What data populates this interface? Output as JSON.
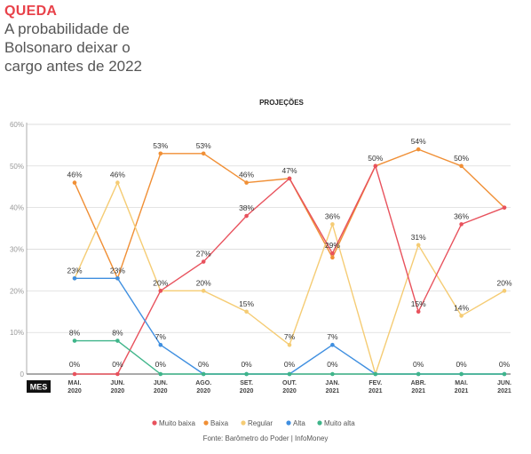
{
  "header": {
    "kicker": "QUEDA",
    "headline_lines": [
      "A probabilidade de",
      "Bolsonaro deixar o",
      "cargo antes de 2022"
    ]
  },
  "source": "Fonte: Barômetro do Poder | InfoMoney",
  "colors": {
    "Muito baixa": "#e8525d",
    "Baixa": "#f08f35",
    "Regular": "#f5cc74",
    "Alta": "#3f8fe0",
    "Muito alta": "#3fb58a",
    "axis_label_bg": "#111111"
  },
  "chart_data": {
    "type": "line",
    "title": "PROJEÇÕES",
    "xlabel": "MES",
    "ylabel": "",
    "ylim": [
      0,
      60
    ],
    "yticks": [
      "0",
      "10%",
      "20%",
      "30%",
      "40%",
      "50%",
      "60%"
    ],
    "grid": true,
    "legend_position": "bottom",
    "categories": [
      [
        "MAI.",
        "2020"
      ],
      [
        "JUN.",
        "2020"
      ],
      [
        "JUN.",
        "2020"
      ],
      [
        "AGO.",
        "2020"
      ],
      [
        "SET.",
        "2020"
      ],
      [
        "OUT.",
        "2020"
      ],
      [
        "JAN.",
        "2021"
      ],
      [
        "FEV.",
        "2021"
      ],
      [
        "ABR.",
        "2021"
      ],
      [
        "MAI.",
        "2021"
      ],
      [
        "JUN.",
        "2021"
      ]
    ],
    "series": [
      {
        "name": "Muito baixa",
        "values": [
          0,
          0,
          20,
          27,
          38,
          47,
          29,
          50,
          15,
          36,
          40
        ],
        "labels": [
          "0%",
          "0%",
          "20%",
          "27%",
          "38%",
          "47%",
          "29%",
          "50%",
          "15%",
          "36%",
          null
        ]
      },
      {
        "name": "Baixa",
        "values": [
          46,
          23,
          53,
          53,
          46,
          47,
          28,
          50,
          54,
          50,
          40
        ],
        "labels": [
          "46%",
          null,
          "53%",
          "53%",
          "46%",
          null,
          null,
          null,
          "54%",
          "50%",
          null
        ]
      },
      {
        "name": "Regular",
        "values": [
          23,
          46,
          20,
          20,
          15,
          7,
          36,
          0,
          31,
          14,
          20
        ],
        "labels": [
          "23%",
          "46%",
          null,
          "20%",
          "15%",
          "7%",
          "36%",
          null,
          "31%",
          "14%",
          "20%"
        ]
      },
      {
        "name": "Alta",
        "values": [
          23,
          23,
          7,
          0,
          0,
          0,
          7,
          0,
          0,
          0,
          0
        ],
        "labels": [
          null,
          "23%",
          "7%",
          "0%",
          "0%",
          "0%",
          "7%",
          null,
          "0%",
          "0%",
          "0%"
        ]
      },
      {
        "name": "Muito alta",
        "values": [
          8,
          8,
          0,
          0,
          0,
          0,
          0,
          0,
          0,
          0,
          0
        ],
        "labels": [
          "8%",
          "8%",
          "0%",
          null,
          null,
          null,
          "0%",
          null,
          null,
          null,
          null
        ]
      }
    ]
  }
}
